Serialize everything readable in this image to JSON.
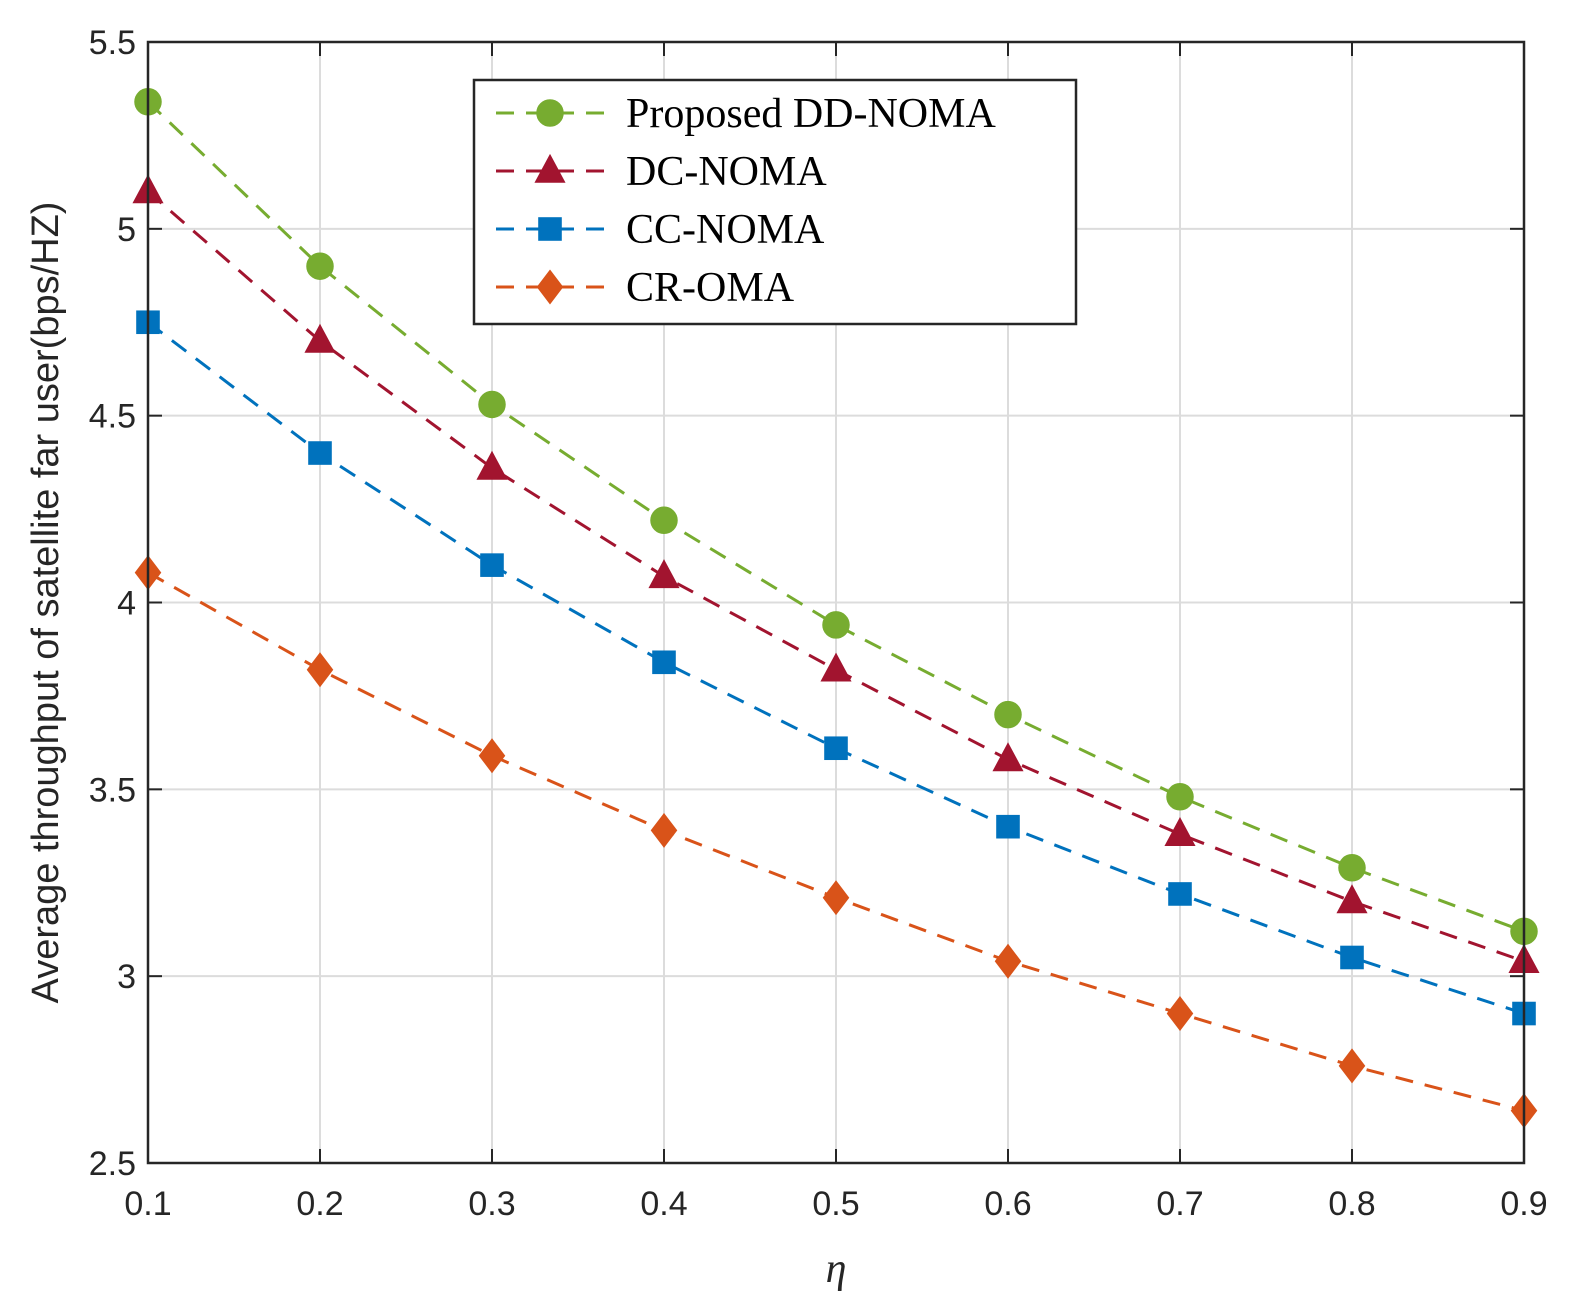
{
  "chart_data": {
    "type": "line",
    "title": "",
    "xlabel": "η",
    "ylabel": "Average throughput of satellite far user(bps/HZ)",
    "x": [
      0.1,
      0.2,
      0.3,
      0.4,
      0.5,
      0.6,
      0.7,
      0.8,
      0.9
    ],
    "xlim": [
      0.1,
      0.9
    ],
    "ylim": [
      2.5,
      5.5
    ],
    "xticks": [
      "0.1",
      "0.2",
      "0.3",
      "0.4",
      "0.5",
      "0.6",
      "0.7",
      "0.8",
      "0.9"
    ],
    "yticks": [
      "2.5",
      "3",
      "3.5",
      "4",
      "4.5",
      "5",
      "5.5"
    ],
    "grid": true,
    "legend_position": "top-center",
    "series": [
      {
        "name": "Proposed DD-NOMA",
        "marker": "circle",
        "color": "#77AC30",
        "values": [
          5.34,
          4.9,
          4.53,
          4.22,
          3.94,
          3.7,
          3.48,
          3.29,
          3.12
        ]
      },
      {
        "name": "DC-NOMA",
        "marker": "triangle",
        "color": "#A2142F",
        "values": [
          5.1,
          4.7,
          4.36,
          4.07,
          3.82,
          3.58,
          3.38,
          3.2,
          3.04
        ]
      },
      {
        "name": "CC-NOMA",
        "marker": "square",
        "color": "#0072BD",
        "values": [
          4.75,
          4.4,
          4.1,
          3.84,
          3.61,
          3.4,
          3.22,
          3.05,
          2.9
        ]
      },
      {
        "name": "CR-OMA",
        "marker": "diamond",
        "color": "#D95319",
        "values": [
          4.08,
          3.82,
          3.59,
          3.39,
          3.21,
          3.04,
          2.9,
          2.76,
          2.64
        ]
      }
    ]
  }
}
